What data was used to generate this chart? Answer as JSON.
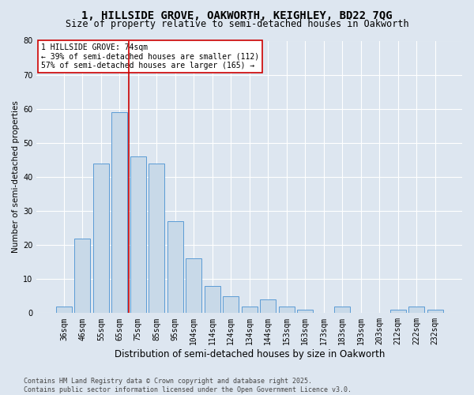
{
  "title1": "1, HILLSIDE GROVE, OAKWORTH, KEIGHLEY, BD22 7QG",
  "title2": "Size of property relative to semi-detached houses in Oakworth",
  "xlabel": "Distribution of semi-detached houses by size in Oakworth",
  "ylabel": "Number of semi-detached properties",
  "categories": [
    "36sqm",
    "46sqm",
    "55sqm",
    "65sqm",
    "75sqm",
    "85sqm",
    "95sqm",
    "104sqm",
    "114sqm",
    "124sqm",
    "134sqm",
    "144sqm",
    "153sqm",
    "163sqm",
    "173sqm",
    "183sqm",
    "193sqm",
    "203sqm",
    "212sqm",
    "222sqm",
    "232sqm"
  ],
  "values": [
    2,
    22,
    44,
    59,
    46,
    44,
    27,
    16,
    8,
    5,
    2,
    4,
    2,
    1,
    0,
    2,
    0,
    0,
    1,
    2,
    1
  ],
  "bar_color": "#c8d9e8",
  "bar_edge_color": "#5b9bd5",
  "vline_index": 3.5,
  "vline_color": "#cc0000",
  "annotation_text": "1 HILLSIDE GROVE: 74sqm\n← 39% of semi-detached houses are smaller (112)\n57% of semi-detached houses are larger (165) →",
  "annotation_box_color": "#ffffff",
  "annotation_box_edge": "#cc0000",
  "ylim": [
    0,
    80
  ],
  "yticks": [
    0,
    10,
    20,
    30,
    40,
    50,
    60,
    70,
    80
  ],
  "background_color": "#dde6f0",
  "plot_bg_color": "#dde6f0",
  "footer_text": "Contains HM Land Registry data © Crown copyright and database right 2025.\nContains public sector information licensed under the Open Government Licence v3.0.",
  "title1_fontsize": 10,
  "title2_fontsize": 8.5,
  "xlabel_fontsize": 8.5,
  "ylabel_fontsize": 7.5,
  "tick_fontsize": 7,
  "footer_fontsize": 6,
  "annot_fontsize": 7
}
